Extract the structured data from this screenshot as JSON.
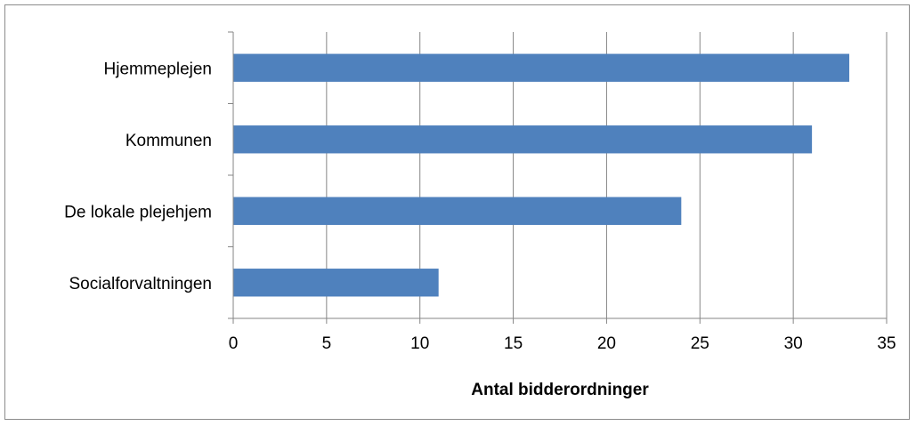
{
  "chart_data": {
    "type": "bar",
    "orientation": "horizontal",
    "categories": [
      "Hjemmeplejen",
      "Kommunen",
      "De lokale plejehjem",
      "Socialforvaltningen"
    ],
    "values": [
      33,
      31,
      24,
      11
    ],
    "xlabel": "Antal bidderordninger",
    "ylabel": "",
    "title": "",
    "xlim": [
      0,
      35
    ],
    "xticks": [
      0,
      5,
      10,
      15,
      20,
      25,
      30,
      35
    ],
    "grid": true,
    "legend": "none",
    "bar_color": "#4f81bd",
    "grid_color": "#868686"
  }
}
